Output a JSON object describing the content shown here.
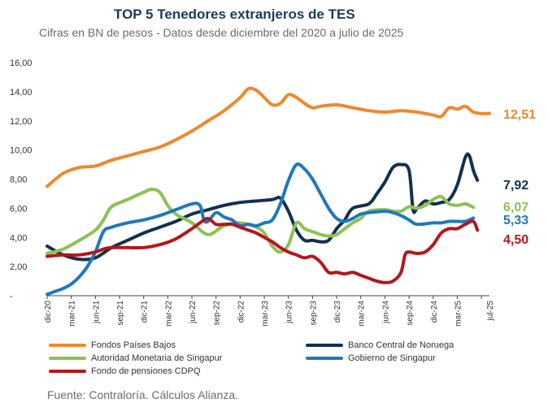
{
  "chart_data": {
    "type": "line",
    "title": "TOP 5 Tenedores extranjeros de TES",
    "subtitle": "Cifras en BN de pesos  - Datos desde diciembre del 2020 a julio de 2025",
    "source": "Fuente:  Contraloría. Cálculos Alianza.",
    "xlabel": "",
    "ylabel": "",
    "ylim": [
      0,
      16
    ],
    "y_ticks": [
      "-",
      "2,00",
      "4,00",
      "6,00",
      "8,00",
      "10,00",
      "12,00",
      "14,00",
      "16,00"
    ],
    "x_tick_labels": [
      "dic-20",
      "mar-21",
      "jun-21",
      "sep-21",
      "dic-21",
      "mar-22",
      "jun-22",
      "sep-22",
      "dic-22",
      "mar-23",
      "jun-23",
      "sep-23",
      "dic-23",
      "mar-24",
      "jun-24",
      "sep-24",
      "dic-24",
      "mar-25",
      "jul-25"
    ],
    "x_range_months": [
      0,
      55
    ],
    "series": [
      {
        "name": "Fondos Países Bajos",
        "color": "#f0882c",
        "end_label": "12,51",
        "points": [
          [
            0,
            7.5
          ],
          [
            2,
            8.4
          ],
          [
            4,
            8.8
          ],
          [
            6,
            8.9
          ],
          [
            8,
            9.3
          ],
          [
            10,
            9.6
          ],
          [
            12,
            9.9
          ],
          [
            14,
            10.2
          ],
          [
            16,
            10.7
          ],
          [
            18,
            11.3
          ],
          [
            20,
            12.0
          ],
          [
            22,
            12.7
          ],
          [
            24,
            13.6
          ],
          [
            25,
            14.2
          ],
          [
            26,
            14.1
          ],
          [
            27,
            13.6
          ],
          [
            28,
            13.1
          ],
          [
            29,
            13.2
          ],
          [
            30,
            13.8
          ],
          [
            31,
            13.6
          ],
          [
            32,
            13.2
          ],
          [
            33,
            12.9
          ],
          [
            34,
            13.0
          ],
          [
            36,
            13.1
          ],
          [
            38,
            12.9
          ],
          [
            40,
            12.7
          ],
          [
            42,
            12.6
          ],
          [
            44,
            12.7
          ],
          [
            46,
            12.6
          ],
          [
            48,
            12.4
          ],
          [
            49,
            12.3
          ],
          [
            50,
            12.9
          ],
          [
            51,
            12.8
          ],
          [
            52,
            13.0
          ],
          [
            53,
            12.6
          ],
          [
            54,
            12.5
          ],
          [
            55,
            12.51
          ]
        ]
      },
      {
        "name": "Banco Central de Noruega",
        "color": "#13304e",
        "end_label": "7,92",
        "points": [
          [
            0,
            3.4
          ],
          [
            2,
            2.8
          ],
          [
            4,
            2.5
          ],
          [
            6,
            2.6
          ],
          [
            8,
            3.3
          ],
          [
            10,
            3.8
          ],
          [
            12,
            4.3
          ],
          [
            14,
            4.7
          ],
          [
            16,
            5.1
          ],
          [
            18,
            5.6
          ],
          [
            20,
            5.9
          ],
          [
            22,
            6.2
          ],
          [
            24,
            6.4
          ],
          [
            26,
            6.5
          ],
          [
            28,
            6.6
          ],
          [
            29,
            6.7
          ],
          [
            30,
            5.8
          ],
          [
            31,
            4.5
          ],
          [
            32,
            3.8
          ],
          [
            33,
            3.8
          ],
          [
            34,
            3.7
          ],
          [
            35,
            3.8
          ],
          [
            36,
            4.6
          ],
          [
            37,
            5.2
          ],
          [
            38,
            6.0
          ],
          [
            40,
            6.3
          ],
          [
            41,
            7.0
          ],
          [
            42,
            7.8
          ],
          [
            43,
            8.8
          ],
          [
            44,
            9.0
          ],
          [
            45,
            8.6
          ],
          [
            45.5,
            5.9
          ],
          [
            46,
            6.0
          ],
          [
            47,
            6.5
          ],
          [
            48,
            6.3
          ],
          [
            49,
            6.4
          ],
          [
            50,
            6.6
          ],
          [
            51,
            7.6
          ],
          [
            52,
            9.5
          ],
          [
            52.5,
            9.6
          ],
          [
            53,
            8.6
          ],
          [
            53.5,
            7.92
          ]
        ]
      },
      {
        "name": "Autoridad Monetaria de Singapur",
        "color": "#8dc153",
        "end_label": "6,07",
        "points": [
          [
            0,
            2.9
          ],
          [
            2,
            3.2
          ],
          [
            4,
            3.8
          ],
          [
            6,
            4.5
          ],
          [
            7,
            5.2
          ],
          [
            8,
            6.1
          ],
          [
            10,
            6.6
          ],
          [
            12,
            7.1
          ],
          [
            13,
            7.3
          ],
          [
            14,
            7.1
          ],
          [
            15,
            6.2
          ],
          [
            16,
            5.6
          ],
          [
            18,
            5.0
          ],
          [
            20,
            4.2
          ],
          [
            22,
            4.8
          ],
          [
            24,
            5.0
          ],
          [
            26,
            4.7
          ],
          [
            27,
            4.3
          ],
          [
            28,
            3.4
          ],
          [
            29,
            3.0
          ],
          [
            30,
            3.5
          ],
          [
            31,
            5.0
          ],
          [
            32,
            4.6
          ],
          [
            33,
            4.4
          ],
          [
            34,
            4.2
          ],
          [
            35,
            4.1
          ],
          [
            36,
            4.2
          ],
          [
            37,
            4.6
          ],
          [
            38,
            5.0
          ],
          [
            39,
            5.3
          ],
          [
            40,
            5.8
          ],
          [
            42,
            5.9
          ],
          [
            43,
            5.8
          ],
          [
            44,
            5.8
          ],
          [
            45,
            6.1
          ],
          [
            46,
            6.0
          ],
          [
            47,
            6.2
          ],
          [
            48,
            6.6
          ],
          [
            49,
            6.8
          ],
          [
            50,
            6.3
          ],
          [
            51,
            6.2
          ],
          [
            52,
            6.3
          ],
          [
            53,
            6.07
          ]
        ]
      },
      {
        "name": "Gobierno de Singapur",
        "color": "#1f78be",
        "end_label": "5,33",
        "points": [
          [
            0,
            0.1
          ],
          [
            1,
            0.3
          ],
          [
            2,
            0.5
          ],
          [
            3,
            0.8
          ],
          [
            4,
            1.3
          ],
          [
            5,
            2.0
          ],
          [
            6,
            3.0
          ],
          [
            7,
            4.4
          ],
          [
            8,
            4.7
          ],
          [
            10,
            5.0
          ],
          [
            12,
            5.2
          ],
          [
            14,
            5.5
          ],
          [
            16,
            5.9
          ],
          [
            18,
            6.3
          ],
          [
            19,
            6.2
          ],
          [
            19.5,
            5.2
          ],
          [
            20,
            5.1
          ],
          [
            21,
            5.7
          ],
          [
            22,
            5.4
          ],
          [
            23,
            5.2
          ],
          [
            24,
            4.8
          ],
          [
            25,
            4.9
          ],
          [
            26,
            4.8
          ],
          [
            27,
            5.0
          ],
          [
            28,
            5.2
          ],
          [
            29,
            6.3
          ],
          [
            30,
            7.9
          ],
          [
            31,
            9.0
          ],
          [
            32,
            8.7
          ],
          [
            33,
            8.0
          ],
          [
            34,
            7.0
          ],
          [
            35,
            6.0
          ],
          [
            36,
            5.3
          ],
          [
            37,
            5.1
          ],
          [
            38,
            5.3
          ],
          [
            39,
            5.6
          ],
          [
            40,
            5.7
          ],
          [
            42,
            5.8
          ],
          [
            43,
            5.7
          ],
          [
            44,
            5.5
          ],
          [
            45,
            5.2
          ],
          [
            46,
            4.9
          ],
          [
            48,
            5.0
          ],
          [
            49,
            5.0
          ],
          [
            50,
            5.1
          ],
          [
            51,
            5.1
          ],
          [
            52,
            5.1
          ],
          [
            53,
            5.33
          ]
        ]
      },
      {
        "name": "Fondo de pensiones CDPQ",
        "color": "#b5161b",
        "end_label": "4,50",
        "points": [
          [
            0,
            2.7
          ],
          [
            2,
            2.8
          ],
          [
            4,
            2.8
          ],
          [
            6,
            3.0
          ],
          [
            7,
            3.2
          ],
          [
            8,
            3.3
          ],
          [
            10,
            3.3
          ],
          [
            12,
            3.3
          ],
          [
            14,
            3.5
          ],
          [
            16,
            3.9
          ],
          [
            18,
            4.6
          ],
          [
            19,
            5.0
          ],
          [
            20,
            5.3
          ],
          [
            21,
            4.9
          ],
          [
            22,
            4.9
          ],
          [
            23,
            4.9
          ],
          [
            24,
            4.7
          ],
          [
            25,
            4.5
          ],
          [
            26,
            4.3
          ],
          [
            27,
            4.0
          ],
          [
            28,
            3.7
          ],
          [
            29,
            3.3
          ],
          [
            30,
            3.0
          ],
          [
            31,
            2.8
          ],
          [
            32,
            2.6
          ],
          [
            33,
            2.7
          ],
          [
            34,
            2.3
          ],
          [
            35,
            1.6
          ],
          [
            36,
            1.6
          ],
          [
            37,
            1.5
          ],
          [
            38,
            1.6
          ],
          [
            39,
            1.4
          ],
          [
            40,
            1.2
          ],
          [
            41,
            1.0
          ],
          [
            42,
            0.9
          ],
          [
            43,
            1.0
          ],
          [
            44,
            1.6
          ],
          [
            44.5,
            2.8
          ],
          [
            45,
            3.0
          ],
          [
            46,
            2.9
          ],
          [
            47,
            3.0
          ],
          [
            48,
            3.5
          ],
          [
            49,
            4.3
          ],
          [
            50,
            4.6
          ],
          [
            51,
            4.6
          ],
          [
            52,
            4.9
          ],
          [
            53,
            5.1
          ],
          [
            53.5,
            4.5
          ]
        ]
      }
    ]
  },
  "legend": [
    {
      "label": "Fondos Países Bajos",
      "color": "#f0882c"
    },
    {
      "label": "Banco Central de Noruega",
      "color": "#13304e"
    },
    {
      "label": "Autoridad Monetaria de Singapur",
      "color": "#8dc153"
    },
    {
      "label": "Gobierno de Singapur",
      "color": "#1f78be"
    },
    {
      "label": "Fondo de pensiones CDPQ",
      "color": "#b5161b"
    }
  ]
}
